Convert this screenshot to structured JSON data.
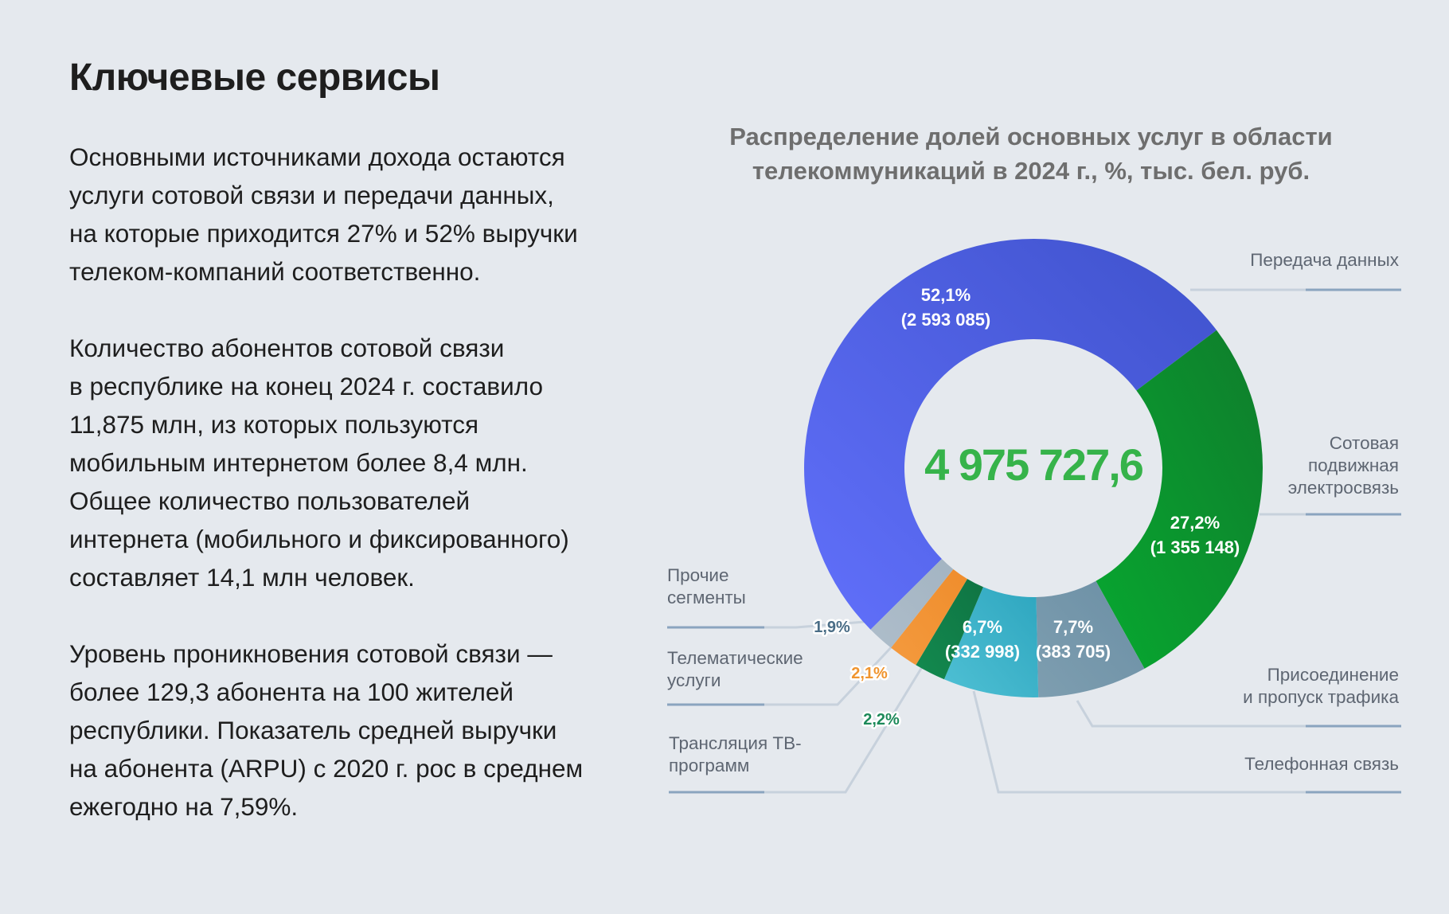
{
  "heading": "Ключевые сервисы",
  "paragraphs": [
    "Основными источниками дохода остаются\nуслуги сотовой связи и передачи данных,\nна которые приходится 27% и 52% выручки\nтелеком-компаний соответственно.",
    "Количество абонентов сотовой связи\nв республике на конец 2024 г. составило\n11,875 млн, из которых пользуются\nмобильным интернетом более 8,4 млн.\nОбщее количество пользователей\nинтернета (мобильного и фиксированного)\nсоставляет 14,1 млн человек.",
    "Уровень проникновения сотовой связи —\nболее 129,3 абонента на 100 жителей\nреспублики. Показатель средней выручки\nна абонента (ARPU) с 2020 г. рос в среднем\nежегодно на 7,59%."
  ],
  "chart_data": {
    "type": "pie",
    "title": "Распределение долей основных услуг в области\nтелекоммуникаций в 2024 г., %, тыс. бел. руб.",
    "total": "4 975 727,6",
    "total_color": "#36b34a",
    "segments": [
      {
        "name": "Передача данных",
        "name_lines": [
          "Передача данных"
        ],
        "percent": 52.1,
        "percent_label": "52,1%",
        "value_label": "(2 593 085)",
        "color_from": "#6170fb",
        "color_to": "#3f52cc"
      },
      {
        "name": "Сотовая подвижная электросвязь",
        "name_lines": [
          "Сотовая",
          "подвижная",
          "электросвязь"
        ],
        "percent": 27.2,
        "percent_label": "27,2%",
        "value_label": "(1 355 148)",
        "color_from": "#07a830",
        "color_to": "#0f7d2c"
      },
      {
        "name": "Присоединение и пропуск трафика",
        "name_lines": [
          "Присоединение",
          "и пропуск трафика"
        ],
        "percent": 7.7,
        "percent_label": "7,7%",
        "value_label": "(383 705)",
        "color_from": "#7e9eb0",
        "color_to": "#6b8fa5"
      },
      {
        "name": "Телефонная связь",
        "name_lines": [
          "Телефонная связь"
        ],
        "percent": 6.7,
        "percent_label": "6,7%",
        "value_label": "(332 998)",
        "color_from": "#4fc0d4",
        "color_to": "#2ea6bf"
      },
      {
        "name": "Трансляция ТВ-программ",
        "name_lines": [
          "Трансляция ТВ-",
          "программ"
        ],
        "percent": 2.2,
        "percent_label": "2,2%",
        "value_label": "",
        "color_from": "#138a4f",
        "color_to": "#0f7443"
      },
      {
        "name": "Телематические услуги",
        "name_lines": [
          "Телематические",
          "услуги"
        ],
        "percent": 2.1,
        "percent_label": "2,1%",
        "value_label": "",
        "color_from": "#f49a3e",
        "color_to": "#ef8d2c"
      },
      {
        "name": "Прочие сегменты",
        "name_lines": [
          "Прочие",
          "сегменты"
        ],
        "percent": 1.9,
        "percent_label": "1,9%",
        "value_label": "",
        "color_from": "#aebdca",
        "color_to": "#a3b4c2"
      }
    ],
    "small_label_colors": [
      "#ffffff",
      "#ffffff",
      "#ffffff",
      "#ffffff",
      "#1d8a5a",
      "#f0952f",
      "#4a6d86"
    ],
    "leader_color": "#c7d1dc",
    "underline_color": "#8aa4bf"
  }
}
